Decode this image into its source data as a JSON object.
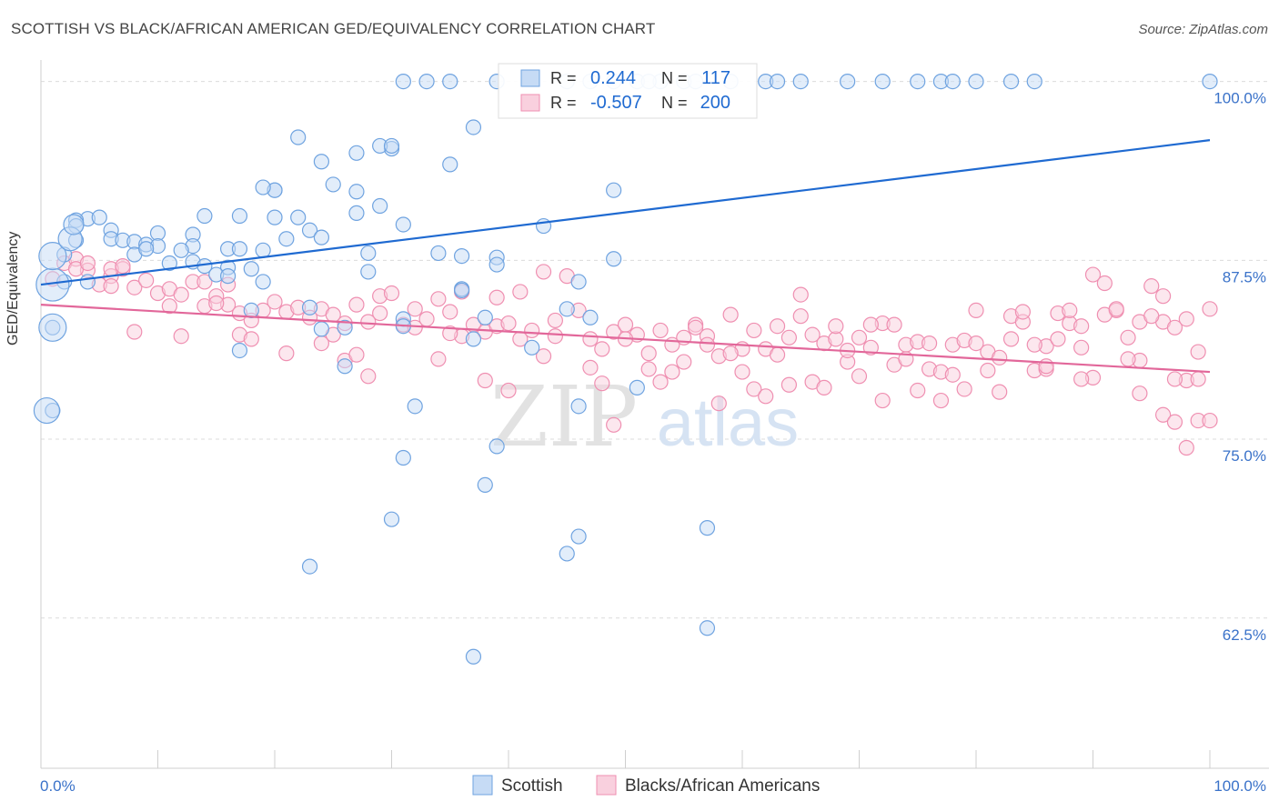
{
  "title": "SCOTTISH VS BLACK/AFRICAN AMERICAN GED/EQUIVALENCY CORRELATION CHART",
  "source": "Source: ZipAtlas.com",
  "watermark": {
    "zip": "ZIP",
    "atlas": "atlas"
  },
  "colors": {
    "blue": "#6fa3e0",
    "blue_fill": "#c6dbf5",
    "blue_line": "#1f6ad1",
    "pink": "#ef8fb1",
    "pink_fill": "#f9d0de",
    "pink_line": "#e2679a",
    "tick_text": "#3a72c9"
  },
  "legend_stats": [
    {
      "r_label": "R =",
      "r_value": "0.244",
      "n_label": "N =",
      "n_value": "117"
    },
    {
      "r_label": "R =",
      "r_value": "-0.507",
      "n_label": "N =",
      "n_value": "200"
    }
  ],
  "chart_data": {
    "type": "scatter",
    "ylabel": "GED/Equivalency",
    "x_tick_labels": [
      "0.0%",
      "100.0%"
    ],
    "y_tick_labels": [
      "100.0%",
      "87.5%",
      "75.0%",
      "62.5%"
    ],
    "xlim": [
      0,
      100
    ],
    "ylim": [
      52,
      101.5
    ],
    "y_ticks": [
      100,
      87.5,
      75,
      62.5
    ],
    "legend_placement": "bottom",
    "series": [
      {
        "name": "Scottish",
        "trend": {
          "x0": 0,
          "y0": 85.8,
          "x1": 100,
          "y1": 95.9
        },
        "points": [
          [
            31,
            100
          ],
          [
            33,
            100
          ],
          [
            35,
            100
          ],
          [
            39,
            100
          ],
          [
            45,
            100
          ],
          [
            47,
            100
          ],
          [
            49,
            100
          ],
          [
            51,
            100
          ],
          [
            53,
            100
          ],
          [
            55,
            100
          ],
          [
            59,
            100
          ],
          [
            62,
            100
          ],
          [
            63,
            100
          ],
          [
            65,
            100
          ],
          [
            69,
            100
          ],
          [
            72,
            100
          ],
          [
            75,
            100
          ],
          [
            77,
            100
          ],
          [
            78,
            100
          ],
          [
            80,
            100
          ],
          [
            83,
            100
          ],
          [
            85,
            100
          ],
          [
            100,
            100
          ],
          [
            52,
            100
          ],
          [
            56,
            100
          ],
          [
            37,
            96.8
          ],
          [
            22,
            96.1
          ],
          [
            30,
            95.3
          ],
          [
            29,
            95.5
          ],
          [
            27,
            95.0
          ],
          [
            24,
            94.4
          ],
          [
            35,
            94.2
          ],
          [
            25,
            92.8
          ],
          [
            27,
            92.3
          ],
          [
            20,
            92.4
          ],
          [
            20,
            92.4
          ],
          [
            49,
            92.4
          ],
          [
            19,
            92.6
          ],
          [
            29,
            91.3
          ],
          [
            20,
            90.5
          ],
          [
            22,
            90.5
          ],
          [
            27,
            90.8
          ],
          [
            17,
            90.6
          ],
          [
            14,
            90.6
          ],
          [
            4,
            90.4
          ],
          [
            5,
            90.5
          ],
          [
            3,
            90.3
          ],
          [
            3,
            89.9
          ],
          [
            31,
            90.0
          ],
          [
            43,
            89.9
          ],
          [
            6,
            89.6
          ],
          [
            10,
            89.4
          ],
          [
            23,
            89.6
          ],
          [
            24,
            89.1
          ],
          [
            13,
            89.3
          ],
          [
            21,
            89.0
          ],
          [
            6,
            89.0
          ],
          [
            7,
            88.9
          ],
          [
            8,
            88.8
          ],
          [
            9,
            88.6
          ],
          [
            10,
            88.5
          ],
          [
            13,
            88.5
          ],
          [
            16,
            88.3
          ],
          [
            17,
            88.3
          ],
          [
            19,
            88.2
          ],
          [
            12,
            88.2
          ],
          [
            28,
            88.0
          ],
          [
            34,
            88.0
          ],
          [
            36,
            87.8
          ],
          [
            39,
            87.7
          ],
          [
            49,
            87.6
          ],
          [
            13,
            87.4
          ],
          [
            8,
            87.9
          ],
          [
            9,
            88.3
          ],
          [
            11,
            87.3
          ],
          [
            14,
            87.1
          ],
          [
            16,
            87.0
          ],
          [
            18,
            86.9
          ],
          [
            15,
            86.5
          ],
          [
            16,
            86.4
          ],
          [
            28,
            86.7
          ],
          [
            39,
            87.2
          ],
          [
            46,
            86.0
          ],
          [
            19,
            86.0
          ],
          [
            36,
            85.5
          ],
          [
            36,
            85.4
          ],
          [
            45,
            84.1
          ],
          [
            23,
            84.2
          ],
          [
            31,
            83.4
          ],
          [
            38,
            83.5
          ],
          [
            47,
            83.5
          ],
          [
            18,
            84.0
          ],
          [
            24,
            82.7
          ],
          [
            26,
            82.8
          ],
          [
            31,
            82.9
          ],
          [
            37,
            82.0
          ],
          [
            42,
            81.4
          ],
          [
            17,
            81.2
          ],
          [
            26,
            80.1
          ],
          [
            51,
            78.6
          ],
          [
            32,
            77.3
          ],
          [
            46,
            77.3
          ],
          [
            39,
            74.5
          ],
          [
            31,
            73.7
          ],
          [
            38,
            71.8
          ],
          [
            30,
            69.4
          ],
          [
            57,
            68.8
          ],
          [
            46,
            68.2
          ],
          [
            45,
            67.0
          ],
          [
            23,
            66.1
          ],
          [
            57,
            61.8
          ],
          [
            37,
            59.8
          ],
          [
            3,
            88.9
          ],
          [
            4,
            86.0
          ],
          [
            2,
            87.9
          ],
          [
            1,
            82.8
          ],
          [
            1,
            77.0
          ],
          [
            2,
            86.0
          ],
          [
            30,
            95.5
          ]
        ]
      },
      {
        "name": "Blacks/African Americans",
        "trend": {
          "x0": 0,
          "y0": 84.4,
          "x1": 100,
          "y1": 79.7
        },
        "points": [
          [
            1,
            86.2
          ],
          [
            2,
            87.3
          ],
          [
            3,
            87.6
          ],
          [
            4,
            86.8
          ],
          [
            5,
            85.8
          ],
          [
            6,
            86.4
          ],
          [
            7,
            86.9
          ],
          [
            8,
            85.6
          ],
          [
            9,
            86.1
          ],
          [
            10,
            85.2
          ],
          [
            11,
            85.5
          ],
          [
            12,
            85.1
          ],
          [
            13,
            86.0
          ],
          [
            14,
            84.3
          ],
          [
            15,
            85.0
          ],
          [
            16,
            84.4
          ],
          [
            17,
            83.8
          ],
          [
            18,
            83.3
          ],
          [
            19,
            84.0
          ],
          [
            20,
            84.6
          ],
          [
            21,
            83.9
          ],
          [
            22,
            84.2
          ],
          [
            23,
            83.5
          ],
          [
            24,
            84.1
          ],
          [
            25,
            83.7
          ],
          [
            26,
            83.1
          ],
          [
            27,
            84.4
          ],
          [
            28,
            83.2
          ],
          [
            29,
            85.0
          ],
          [
            30,
            85.2
          ],
          [
            31,
            83.0
          ],
          [
            32,
            82.8
          ],
          [
            33,
            83.4
          ],
          [
            34,
            84.8
          ],
          [
            35,
            83.9
          ],
          [
            36,
            82.2
          ],
          [
            37,
            83.0
          ],
          [
            38,
            82.5
          ],
          [
            39,
            82.9
          ],
          [
            40,
            83.1
          ],
          [
            41,
            82.0
          ],
          [
            42,
            82.6
          ],
          [
            43,
            86.7
          ],
          [
            44,
            82.2
          ],
          [
            45,
            86.4
          ],
          [
            46,
            84.0
          ],
          [
            47,
            82.0
          ],
          [
            48,
            81.3
          ],
          [
            49,
            82.5
          ],
          [
            50,
            83.0
          ],
          [
            51,
            82.3
          ],
          [
            52,
            81.0
          ],
          [
            53,
            82.6
          ],
          [
            54,
            81.6
          ],
          [
            55,
            82.1
          ],
          [
            56,
            83.0
          ],
          [
            57,
            82.2
          ],
          [
            58,
            80.8
          ],
          [
            59,
            83.7
          ],
          [
            60,
            81.3
          ],
          [
            61,
            82.6
          ],
          [
            62,
            81.3
          ],
          [
            63,
            80.9
          ],
          [
            64,
            82.1
          ],
          [
            65,
            83.6
          ],
          [
            66,
            82.3
          ],
          [
            67,
            81.7
          ],
          [
            68,
            82.0
          ],
          [
            69,
            80.4
          ],
          [
            70,
            82.1
          ],
          [
            71,
            81.4
          ],
          [
            72,
            83.1
          ],
          [
            73,
            80.2
          ],
          [
            74,
            81.6
          ],
          [
            75,
            81.8
          ],
          [
            76,
            79.9
          ],
          [
            77,
            79.7
          ],
          [
            78,
            81.6
          ],
          [
            79,
            81.9
          ],
          [
            80,
            84.0
          ],
          [
            81,
            81.1
          ],
          [
            82,
            80.7
          ],
          [
            83,
            83.6
          ],
          [
            84,
            83.2
          ],
          [
            85,
            79.8
          ],
          [
            86,
            81.5
          ],
          [
            87,
            83.8
          ],
          [
            88,
            83.1
          ],
          [
            89,
            82.9
          ],
          [
            90,
            79.3
          ],
          [
            91,
            85.9
          ],
          [
            92,
            84.0
          ],
          [
            93,
            82.1
          ],
          [
            94,
            80.5
          ],
          [
            95,
            85.7
          ],
          [
            96,
            83.2
          ],
          [
            97,
            82.8
          ],
          [
            98,
            79.1
          ],
          [
            99,
            76.3
          ],
          [
            100,
            84.1
          ],
          [
            6,
            86.9
          ],
          [
            7,
            87.1
          ],
          [
            14,
            86.0
          ],
          [
            16,
            85.8
          ],
          [
            11,
            84.3
          ],
          [
            17,
            82.3
          ],
          [
            24,
            81.7
          ],
          [
            28,
            79.4
          ],
          [
            35,
            82.4
          ],
          [
            38,
            79.1
          ],
          [
            43,
            80.8
          ],
          [
            40,
            78.4
          ],
          [
            49,
            76.0
          ],
          [
            53,
            79.0
          ],
          [
            58,
            77.5
          ],
          [
            61,
            78.5
          ],
          [
            62,
            78.0
          ],
          [
            66,
            79.0
          ],
          [
            72,
            77.7
          ],
          [
            75,
            78.4
          ],
          [
            77,
            77.7
          ],
          [
            82,
            78.3
          ],
          [
            86,
            79.9
          ],
          [
            89,
            79.2
          ],
          [
            94,
            78.2
          ],
          [
            96,
            76.7
          ],
          [
            97,
            76.2
          ],
          [
            98,
            74.4
          ],
          [
            99,
            79.2
          ],
          [
            100,
            76.3
          ],
          [
            3,
            86.9
          ],
          [
            4,
            87.3
          ],
          [
            6,
            85.7
          ],
          [
            8,
            82.5
          ],
          [
            12,
            82.2
          ],
          [
            15,
            84.5
          ],
          [
            18,
            82.0
          ],
          [
            21,
            81.0
          ],
          [
            25,
            82.3
          ],
          [
            26,
            80.5
          ],
          [
            27,
            80.9
          ],
          [
            29,
            83.8
          ],
          [
            32,
            84.1
          ],
          [
            34,
            80.6
          ],
          [
            36,
            85.3
          ],
          [
            39,
            84.9
          ],
          [
            41,
            85.3
          ],
          [
            44,
            83.3
          ],
          [
            47,
            80.0
          ],
          [
            48,
            78.9
          ],
          [
            50,
            82.0
          ],
          [
            52,
            79.9
          ],
          [
            54,
            79.7
          ],
          [
            55,
            80.4
          ],
          [
            56,
            82.8
          ],
          [
            57,
            81.6
          ],
          [
            59,
            81.0
          ],
          [
            60,
            79.7
          ],
          [
            63,
            82.9
          ],
          [
            64,
            78.8
          ],
          [
            65,
            85.1
          ],
          [
            67,
            78.6
          ],
          [
            68,
            82.9
          ],
          [
            69,
            81.2
          ],
          [
            70,
            79.4
          ],
          [
            71,
            83.0
          ],
          [
            73,
            83.0
          ],
          [
            74,
            80.6
          ],
          [
            76,
            81.7
          ],
          [
            78,
            79.5
          ],
          [
            79,
            78.5
          ],
          [
            80,
            81.7
          ],
          [
            81,
            79.8
          ],
          [
            83,
            82.0
          ],
          [
            84,
            83.9
          ],
          [
            85,
            81.6
          ],
          [
            86,
            80.1
          ],
          [
            87,
            82.0
          ],
          [
            88,
            84.0
          ],
          [
            89,
            81.4
          ],
          [
            90,
            86.5
          ],
          [
            91,
            83.7
          ],
          [
            92,
            84.1
          ],
          [
            93,
            80.6
          ],
          [
            94,
            83.2
          ],
          [
            95,
            83.6
          ],
          [
            96,
            85.0
          ],
          [
            97,
            79.2
          ],
          [
            98,
            83.4
          ],
          [
            99,
            81.1
          ]
        ]
      }
    ],
    "size_outliers": [
      {
        "series": 0,
        "x": 1,
        "y": 85.8,
        "r": 18
      },
      {
        "series": 0,
        "x": 1,
        "y": 87.8,
        "r": 15
      },
      {
        "series": 0,
        "x": 1,
        "y": 82.8,
        "r": 15
      },
      {
        "series": 0,
        "x": 0.5,
        "y": 77.0,
        "r": 14
      },
      {
        "series": 0,
        "x": 2.5,
        "y": 89.0,
        "r": 13
      },
      {
        "series": 0,
        "x": 2.8,
        "y": 90.0,
        "r": 11
      }
    ]
  }
}
